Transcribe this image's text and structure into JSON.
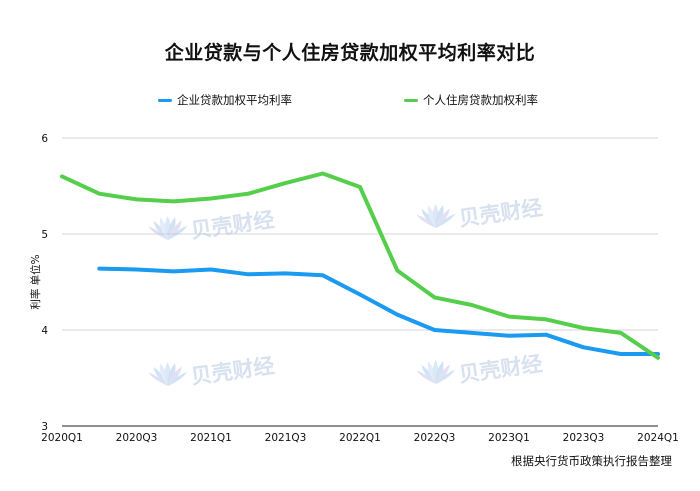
{
  "chart_data": {
    "type": "line",
    "title": "企业贷款与个人住房贷款加权平均利率对比",
    "ylabel": "利率 单位%",
    "source_note": "根据央行货币政策执行报告整理",
    "ylim": [
      3,
      6
    ],
    "yticks": [
      "3",
      "4",
      "5",
      "6"
    ],
    "x": [
      "2020Q1",
      "2020Q2",
      "2020Q3",
      "2020Q4",
      "2021Q1",
      "2021Q2",
      "2021Q3",
      "2021Q4",
      "2022Q1",
      "2022Q2",
      "2022Q3",
      "2022Q4",
      "2023Q1",
      "2023Q2",
      "2023Q3",
      "2023Q4",
      "2024Q1"
    ],
    "xtick_labels": [
      "2020Q1",
      "2020Q3",
      "2021Q1",
      "2021Q3",
      "2022Q1",
      "2022Q3",
      "2023Q1",
      "2023Q3",
      "2024Q1"
    ],
    "grid": true,
    "legend_position": "top",
    "series": [
      {
        "name": "企业贷款加权平均利率",
        "color": "#1a9af0",
        "values": [
          null,
          4.64,
          4.63,
          4.61,
          4.63,
          4.58,
          4.59,
          4.57,
          4.37,
          4.16,
          4.0,
          3.97,
          3.94,
          3.95,
          3.82,
          3.75,
          3.75
        ]
      },
      {
        "name": "个人住房贷款加权利率",
        "color": "#55cf4b",
        "values": [
          5.6,
          5.42,
          5.36,
          5.34,
          5.37,
          5.42,
          5.53,
          5.63,
          5.49,
          4.62,
          4.34,
          4.26,
          4.14,
          4.11,
          4.02,
          3.97,
          3.71
        ]
      }
    ],
    "watermark": "贝壳财经"
  }
}
